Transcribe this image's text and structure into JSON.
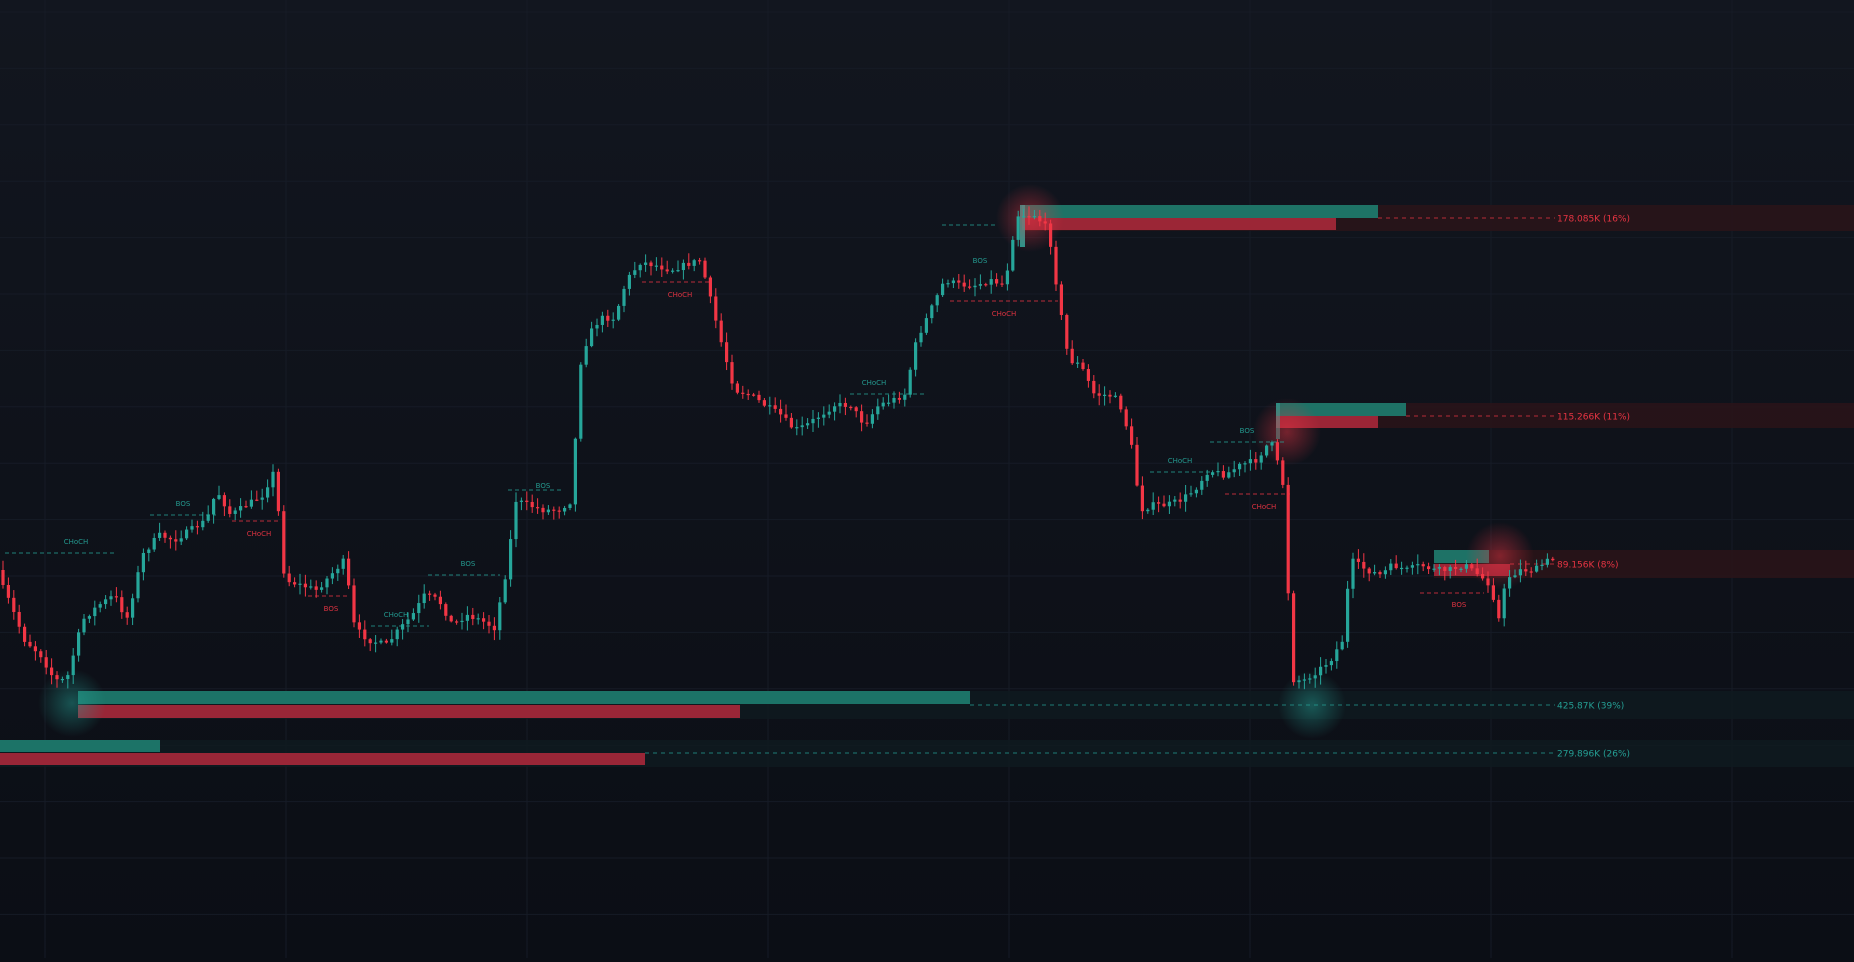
{
  "theme": {
    "background": "#0b0e15",
    "grid": "#161b26",
    "up": "#26a69a",
    "down": "#f23645",
    "bull_zone": "#26a69a",
    "bear_zone": "#f23645"
  },
  "chart_data": {
    "type": "candlestick",
    "title": "",
    "xlabel": "",
    "ylabel": "",
    "grid": true,
    "ylim": [
      0,
      958
    ],
    "candles": [],
    "price_levels": [
      {
        "label": "178.085K (16%)",
        "side": "bear",
        "y_price": 218
      },
      {
        "label": "115.266K (11%)",
        "side": "bear",
        "y_price": 415
      },
      {
        "label": "89.156K (8%)",
        "side": "bear",
        "y_price": 564
      },
      {
        "label": "425.87K (39%)",
        "side": "bull",
        "y_price": 705
      },
      {
        "label": "279.896K (26%)",
        "side": "bull",
        "y_price": 752
      }
    ],
    "structure_labels": [
      {
        "text": "CHoCH",
        "kind": "bull"
      },
      {
        "text": "BOS",
        "kind": "bull"
      },
      {
        "text": "CHoCH",
        "kind": "bear"
      },
      {
        "text": "BOS",
        "kind": "bear"
      },
      {
        "text": "CHoCH",
        "kind": "bull"
      },
      {
        "text": "BOS",
        "kind": "bull"
      },
      {
        "text": "BOS",
        "kind": "bull"
      },
      {
        "text": "CHoCH",
        "kind": "bear"
      },
      {
        "text": "CHoCH",
        "kind": "bull"
      },
      {
        "text": "BOS",
        "kind": "bull"
      },
      {
        "text": "CHoCH",
        "kind": "bear"
      },
      {
        "text": "CHoCH",
        "kind": "bull"
      },
      {
        "text": "BOS",
        "kind": "bull"
      },
      {
        "text": "CHoCH",
        "kind": "bear"
      },
      {
        "text": "BOS",
        "kind": "bear"
      }
    ]
  }
}
